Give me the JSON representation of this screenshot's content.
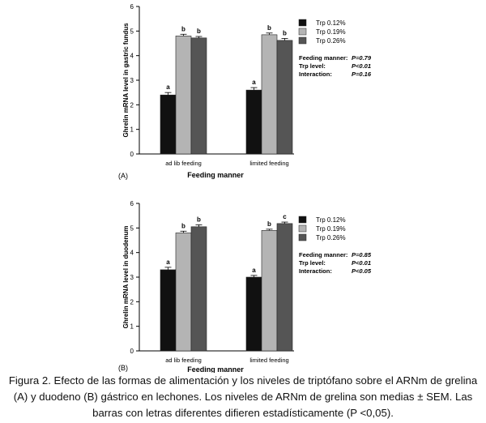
{
  "chart_data": [
    {
      "type": "bar",
      "panel": "(A)",
      "title": "",
      "xlabel": "Feeding manner",
      "ylabel": "Ghrelin mRNA level in gastric fundus",
      "ylim": [
        0,
        6
      ],
      "yticks": [
        "0",
        "1",
        "2",
        "3",
        "4",
        "5",
        "6"
      ],
      "categories": [
        "ad lib feeding",
        "limited feeding"
      ],
      "series": [
        {
          "name": "Trp 0.12%",
          "color": "#111111",
          "values": [
            2.4,
            2.6
          ],
          "errors": [
            0.1,
            0.1
          ],
          "letters": [
            "a",
            "a"
          ]
        },
        {
          "name": "Trp 0.19%",
          "color": "#b4b4b4",
          "values": [
            4.8,
            4.85
          ],
          "errors": [
            0.07,
            0.07
          ],
          "letters": [
            "b",
            "b"
          ]
        },
        {
          "name": "Trp 0.26%",
          "color": "#555555",
          "values": [
            4.72,
            4.62
          ],
          "errors": [
            0.06,
            0.08
          ],
          "letters": [
            "b",
            "b"
          ]
        }
      ],
      "stats": [
        {
          "label": "Feeding manner:",
          "value": "P=0.79"
        },
        {
          "label": "Trp level:",
          "value": "P<0.01"
        },
        {
          "label": "Interaction:",
          "value": "P=0.16"
        }
      ]
    },
    {
      "type": "bar",
      "panel": "(B)",
      "title": "",
      "xlabel": "Feeding manner",
      "ylabel": "Ghrelin mRNA level in duodenum",
      "ylim": [
        0,
        6
      ],
      "yticks": [
        "0",
        "1",
        "2",
        "3",
        "4",
        "5",
        "6"
      ],
      "categories": [
        "ad lib feeding",
        "limited feeding"
      ],
      "series": [
        {
          "name": "Trp 0.12%",
          "color": "#111111",
          "values": [
            3.3,
            3.0
          ],
          "errors": [
            0.1,
            0.07
          ],
          "letters": [
            "a",
            "a"
          ]
        },
        {
          "name": "Trp 0.19%",
          "color": "#b4b4b4",
          "values": [
            4.8,
            4.9
          ],
          "errors": [
            0.07,
            0.05
          ],
          "letters": [
            "b",
            "b"
          ]
        },
        {
          "name": "Trp 0.26%",
          "color": "#555555",
          "values": [
            5.05,
            5.18
          ],
          "errors": [
            0.08,
            0.06
          ],
          "letters": [
            "b",
            "c"
          ]
        }
      ],
      "stats": [
        {
          "label": "Feeding manner:",
          "value": "P=0.85"
        },
        {
          "label": "Trp level:",
          "value": "P<0.01"
        },
        {
          "label": "Interaction:",
          "value": "P<0.05"
        }
      ]
    }
  ],
  "caption": "Figura 2. Efecto de las formas de alimentación y los niveles de triptófano sobre el ARNm de grelina (A) y duodeno (B) gástrico en lechones. Los niveles de ARNm de grelina son medias ± SEM. Las barras con letras diferentes difieren estadísticamente (P <0,05)."
}
